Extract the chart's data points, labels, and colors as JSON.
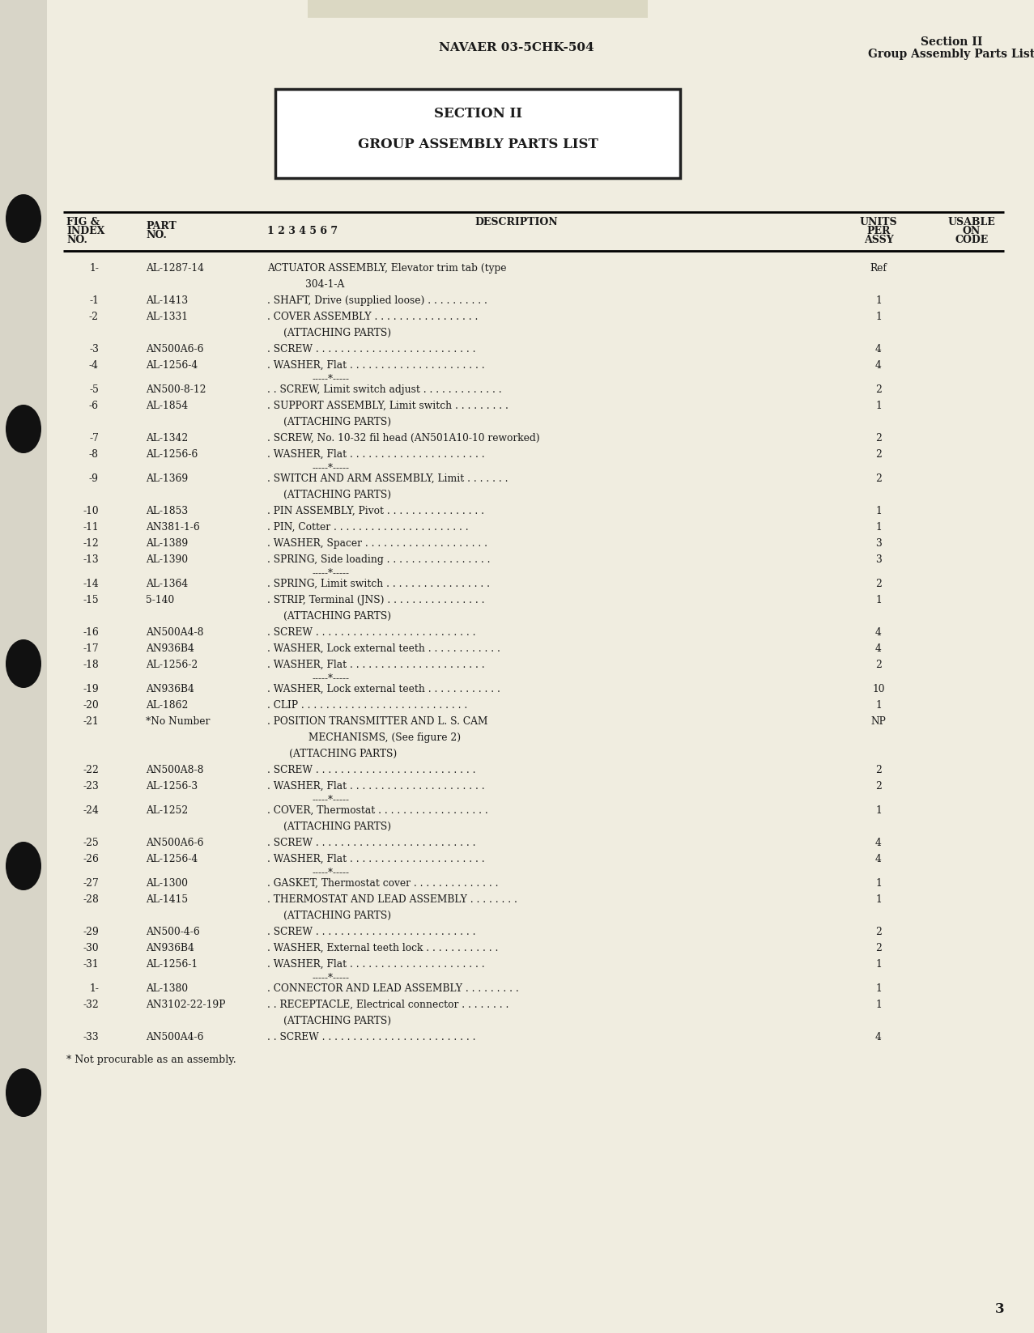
{
  "bg_color": "#f0ede0",
  "header_center": "NAVAER 03-5CHK-504",
  "header_right_line1": "Section II",
  "header_right_line2": "Group Assembly Parts List",
  "section_box_line1": "SECTION II",
  "section_box_line2": "GROUP ASSEMBLY PARTS LIST",
  "rows": [
    {
      "index": "1-",
      "part": "AL-1287-14",
      "desc": "ACTUATOR ASSEMBLY, Elevator trim tab (type",
      "desc2": "       304-1-A",
      "units": "Ref",
      "separator": false
    },
    {
      "index": "-1",
      "part": "AL-1413",
      "desc": ". SHAFT, Drive (supplied loose) . . . . . . . . . .",
      "desc2": "",
      "units": "1",
      "separator": false
    },
    {
      "index": "-2",
      "part": "AL-1331",
      "desc": ". COVER ASSEMBLY . . . . . . . . . . . . . . . . .",
      "desc2": "(ATTACHING PARTS)",
      "units": "1",
      "separator": false
    },
    {
      "index": "-3",
      "part": "AN500A6-6",
      "desc": ". SCREW . . . . . . . . . . . . . . . . . . . . . . . . . .",
      "desc2": "",
      "units": "4",
      "separator": false
    },
    {
      "index": "-4",
      "part": "AL-1256-4",
      "desc": ". WASHER, Flat . . . . . . . . . . . . . . . . . . . . . .",
      "desc2": "",
      "units": "4",
      "separator": true
    },
    {
      "index": "-5",
      "part": "AN500-8-12",
      "desc": ". . SCREW, Limit switch adjust . . . . . . . . . . . . .",
      "desc2": "",
      "units": "2",
      "separator": false
    },
    {
      "index": "-6",
      "part": "AL-1854",
      "desc": ". SUPPORT ASSEMBLY, Limit switch . . . . . . . . .",
      "desc2": "(ATTACHING PARTS)",
      "units": "1",
      "separator": false
    },
    {
      "index": "-7",
      "part": "AL-1342",
      "desc": ". SCREW, No. 10-32 fil head (AN501A10-10 reworked)",
      "desc2": "",
      "units": "2",
      "separator": false
    },
    {
      "index": "-8",
      "part": "AL-1256-6",
      "desc": ". WASHER, Flat . . . . . . . . . . . . . . . . . . . . . .",
      "desc2": "",
      "units": "2",
      "separator": true
    },
    {
      "index": "-9",
      "part": "AL-1369",
      "desc": ". SWITCH AND ARM ASSEMBLY, Limit . . . . . . .",
      "desc2": "(ATTACHING PARTS)",
      "units": "2",
      "separator": false
    },
    {
      "index": "-10",
      "part": "AL-1853",
      "desc": ". PIN ASSEMBLY, Pivot . . . . . . . . . . . . . . . .",
      "desc2": "",
      "units": "1",
      "separator": false
    },
    {
      "index": "-11",
      "part": "AN381-1-6",
      "desc": ". PIN, Cotter . . . . . . . . . . . . . . . . . . . . . .",
      "desc2": "",
      "units": "1",
      "separator": false
    },
    {
      "index": "-12",
      "part": "AL-1389",
      "desc": ". WASHER, Spacer . . . . . . . . . . . . . . . . . . . .",
      "desc2": "",
      "units": "3",
      "separator": false
    },
    {
      "index": "-13",
      "part": "AL-1390",
      "desc": ". SPRING, Side loading . . . . . . . . . . . . . . . . .",
      "desc2": "",
      "units": "3",
      "separator": true
    },
    {
      "index": "-14",
      "part": "AL-1364",
      "desc": ". SPRING, Limit switch . . . . . . . . . . . . . . . . .",
      "desc2": "",
      "units": "2",
      "separator": false
    },
    {
      "index": "-15",
      "part": "5-140",
      "desc": ". STRIP, Terminal (JNS) . . . . . . . . . . . . . . . .",
      "desc2": "(ATTACHING PARTS)",
      "units": "1",
      "separator": false
    },
    {
      "index": "-16",
      "part": "AN500A4-8",
      "desc": ". SCREW . . . . . . . . . . . . . . . . . . . . . . . . . .",
      "desc2": "",
      "units": "4",
      "separator": false
    },
    {
      "index": "-17",
      "part": "AN936B4",
      "desc": ". WASHER, Lock external teeth . . . . . . . . . . . .",
      "desc2": "",
      "units": "4",
      "separator": false
    },
    {
      "index": "-18",
      "part": "AL-1256-2",
      "desc": ". WASHER, Flat . . . . . . . . . . . . . . . . . . . . . .",
      "desc2": "",
      "units": "2",
      "separator": true
    },
    {
      "index": "-19",
      "part": "AN936B4",
      "desc": ". WASHER, Lock external teeth . . . . . . . . . . . .",
      "desc2": "",
      "units": "10",
      "separator": false
    },
    {
      "index": "-20",
      "part": "AL-1862",
      "desc": ". CLIP . . . . . . . . . . . . . . . . . . . . . . . . . . .",
      "desc2": "",
      "units": "1",
      "separator": false
    },
    {
      "index": "-21",
      "part": "*No Number",
      "desc": ". POSITION TRANSMITTER AND L. S. CAM",
      "desc2": "        MECHANISMS, (See figure 2)",
      "units": "NP",
      "separator": false
    },
    {
      "index": "",
      "part": "",
      "desc": "       (ATTACHING PARTS)",
      "desc2": "",
      "units": "",
      "separator": false
    },
    {
      "index": "-22",
      "part": "AN500A8-8",
      "desc": ". SCREW . . . . . . . . . . . . . . . . . . . . . . . . . .",
      "desc2": "",
      "units": "2",
      "separator": false
    },
    {
      "index": "-23",
      "part": "AL-1256-3",
      "desc": ". WASHER, Flat . . . . . . . . . . . . . . . . . . . . . .",
      "desc2": "",
      "units": "2",
      "separator": true
    },
    {
      "index": "-24",
      "part": "AL-1252",
      "desc": ". COVER, Thermostat . . . . . . . . . . . . . . . . . .",
      "desc2": "(ATTACHING PARTS)",
      "units": "1",
      "separator": false
    },
    {
      "index": "-25",
      "part": "AN500A6-6",
      "desc": ". SCREW . . . . . . . . . . . . . . . . . . . . . . . . . .",
      "desc2": "",
      "units": "4",
      "separator": false
    },
    {
      "index": "-26",
      "part": "AL-1256-4",
      "desc": ". WASHER, Flat . . . . . . . . . . . . . . . . . . . . . .",
      "desc2": "",
      "units": "4",
      "separator": true
    },
    {
      "index": "-27",
      "part": "AL-1300",
      "desc": ". GASKET, Thermostat cover . . . . . . . . . . . . . .",
      "desc2": "",
      "units": "1",
      "separator": false
    },
    {
      "index": "-28",
      "part": "AL-1415",
      "desc": ". THERMOSTAT AND LEAD ASSEMBLY . . . . . . . .",
      "desc2": "(ATTACHING PARTS)",
      "units": "1",
      "separator": false
    },
    {
      "index": "-29",
      "part": "AN500-4-6",
      "desc": ". SCREW . . . . . . . . . . . . . . . . . . . . . . . . . .",
      "desc2": "",
      "units": "2",
      "separator": false
    },
    {
      "index": "-30",
      "part": "AN936B4",
      "desc": ". WASHER, External teeth lock . . . . . . . . . . . .",
      "desc2": "",
      "units": "2",
      "separator": false
    },
    {
      "index": "-31",
      "part": "AL-1256-1",
      "desc": ". WASHER, Flat . . . . . . . . . . . . . . . . . . . . . .",
      "desc2": "",
      "units": "1",
      "separator": true
    },
    {
      "index": "1-",
      "part": "AL-1380",
      "desc": ". CONNECTOR AND LEAD ASSEMBLY . . . . . . . . .",
      "desc2": "",
      "units": "1",
      "separator": false
    },
    {
      "index": "-32",
      "part": "AN3102-22-19P",
      "desc": ". . RECEPTACLE, Electrical connector . . . . . . . .",
      "desc2": "(ATTACHING PARTS)",
      "units": "1",
      "separator": false
    },
    {
      "index": "-33",
      "part": "AN500A4-6",
      "desc": ". . SCREW . . . . . . . . . . . . . . . . . . . . . . . . .",
      "desc2": "",
      "units": "4",
      "separator": false
    }
  ],
  "footnote": "* Not procurable as an assembly.",
  "page_number": "3"
}
